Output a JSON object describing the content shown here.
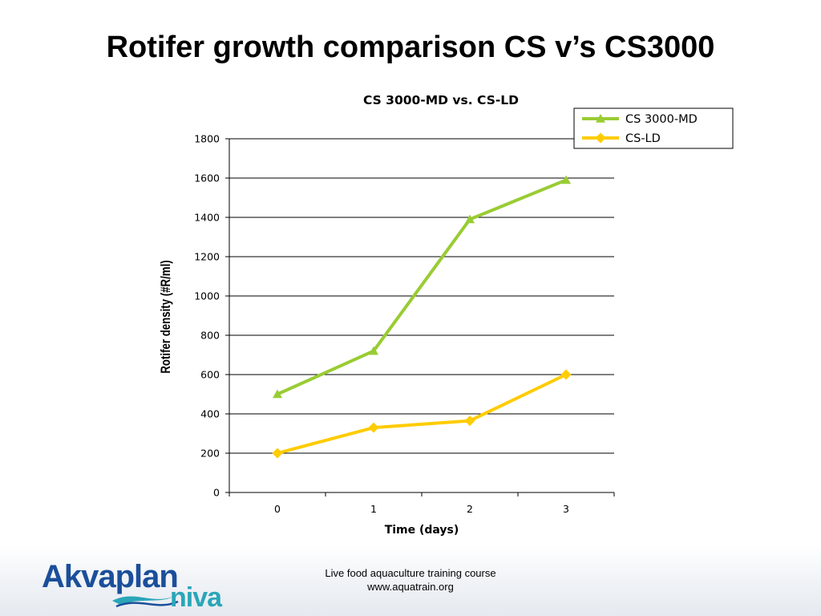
{
  "slide": {
    "title": "Rotifer growth comparison CS v’s CS3000"
  },
  "footer": {
    "line1": "Live food aquaculture training course",
    "line2": "www.aquatrain.org"
  },
  "logo": {
    "text_top": "Akvaplan",
    "text_bottom": "niva",
    "colors": {
      "primary": "#1a4f9a",
      "accent": "#2aa6b8"
    }
  },
  "chart_data": {
    "type": "line",
    "title": "CS 3000-MD vs. CS-LD",
    "xlabel": "Time (days)",
    "ylabel": "Rotifer density (#R/ml)",
    "categories": [
      "0",
      "1",
      "2",
      "3"
    ],
    "ylim": [
      0,
      1800
    ],
    "yticks": [
      0,
      200,
      400,
      600,
      800,
      1000,
      1200,
      1400,
      1600,
      1800
    ],
    "grid": true,
    "legend_position": "top-right",
    "series": [
      {
        "name": "CS 3000-MD",
        "values": [
          500,
          720,
          1390,
          1590
        ],
        "color": "#99cc33",
        "marker": "triangle"
      },
      {
        "name": "CS-LD",
        "values": [
          200,
          330,
          365,
          600
        ],
        "color": "#ffcc00",
        "marker": "diamond"
      }
    ]
  }
}
